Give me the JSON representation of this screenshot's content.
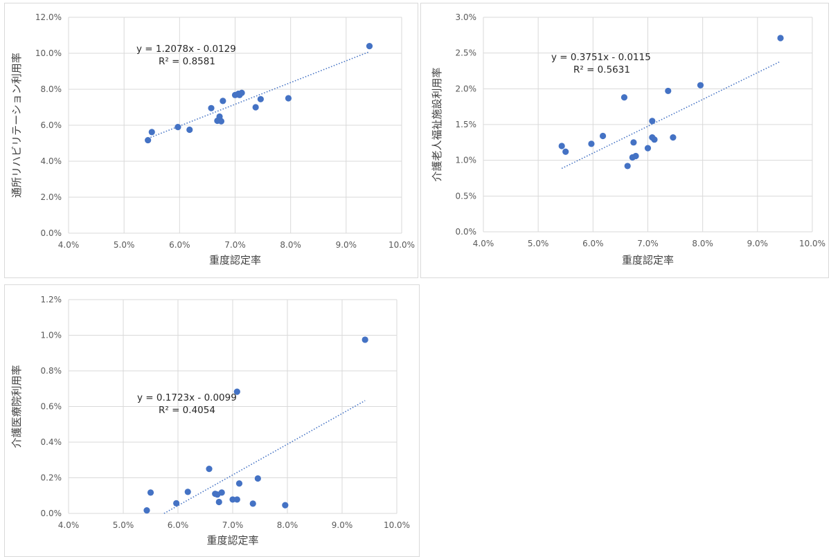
{
  "colors": {
    "point": "#4472C4",
    "trendline": "#4472C4",
    "grid": "#d9d9d9",
    "tick_text": "#595959"
  },
  "chart_data": [
    {
      "type": "scatter",
      "xlabel": "重度認定率",
      "ylabel": "通所リハビリテーション利用率",
      "xlim": [
        0.04,
        0.1
      ],
      "ylim": [
        0,
        0.12
      ],
      "x_ticks": [
        "4.0%",
        "5.0%",
        "6.0%",
        "7.0%",
        "8.0%",
        "9.0%",
        "10.0%"
      ],
      "y_ticks": [
        "0.0%",
        "2.0%",
        "4.0%",
        "6.0%",
        "8.0%",
        "10.0%",
        "12.0%"
      ],
      "grid": true,
      "trendline": {
        "type": "linear",
        "slope": 1.2078,
        "intercept": -0.0129,
        "equation": "y = 1.2078x - 0.0129",
        "r2": "R² = 0.8581"
      },
      "points": [
        [
          0.0543,
          0.0517
        ],
        [
          0.055,
          0.0562
        ],
        [
          0.0597,
          0.059
        ],
        [
          0.0618,
          0.0575
        ],
        [
          0.0657,
          0.0695
        ],
        [
          0.0668,
          0.0625
        ],
        [
          0.0672,
          0.0648
        ],
        [
          0.0675,
          0.0622
        ],
        [
          0.0678,
          0.0735
        ],
        [
          0.07,
          0.0768
        ],
        [
          0.0706,
          0.0775
        ],
        [
          0.0708,
          0.0768
        ],
        [
          0.0712,
          0.078
        ],
        [
          0.0737,
          0.07
        ],
        [
          0.0746,
          0.0745
        ],
        [
          0.0796,
          0.075
        ],
        [
          0.0942,
          0.104
        ]
      ]
    },
    {
      "type": "scatter",
      "xlabel": "重度認定率",
      "ylabel": "介護老人福祉施設利用率",
      "xlim": [
        0.04,
        0.1
      ],
      "ylim": [
        0,
        0.03
      ],
      "x_ticks": [
        "4.0%",
        "5.0%",
        "6.0%",
        "7.0%",
        "8.0%",
        "9.0%",
        "10.0%"
      ],
      "y_ticks": [
        "0.0%",
        "0.5%",
        "1.0%",
        "1.5%",
        "2.0%",
        "2.5%",
        "3.0%"
      ],
      "grid": true,
      "trendline": {
        "type": "linear",
        "slope": 0.3751,
        "intercept": -0.0115,
        "equation": "y = 0.3751x - 0.0115",
        "r2": "R² = 0.5631"
      },
      "points": [
        [
          0.0543,
          0.012
        ],
        [
          0.055,
          0.0112
        ],
        [
          0.0597,
          0.0123
        ],
        [
          0.0618,
          0.0134
        ],
        [
          0.0657,
          0.0188
        ],
        [
          0.0663,
          0.0092
        ],
        [
          0.0672,
          0.0104
        ],
        [
          0.0674,
          0.0125
        ],
        [
          0.0678,
          0.0106
        ],
        [
          0.07,
          0.0117
        ],
        [
          0.0708,
          0.0155
        ],
        [
          0.0708,
          0.0132
        ],
        [
          0.0712,
          0.0129
        ],
        [
          0.0737,
          0.0197
        ],
        [
          0.0746,
          0.0132
        ],
        [
          0.0796,
          0.0205
        ],
        [
          0.0942,
          0.0271
        ]
      ]
    },
    {
      "type": "scatter",
      "xlabel": "重度認定率",
      "ylabel": "介護医療院利用率",
      "xlim": [
        0.04,
        0.1
      ],
      "ylim": [
        0,
        0.012
      ],
      "x_ticks": [
        "4.0%",
        "5.0%",
        "6.0%",
        "7.0%",
        "8.0%",
        "9.0%",
        "10.0%"
      ],
      "y_ticks": [
        "0.0%",
        "0.2%",
        "0.4%",
        "0.6%",
        "0.8%",
        "1.0%",
        "1.2%"
      ],
      "grid": true,
      "trendline": {
        "type": "linear",
        "slope": 0.1723,
        "intercept": -0.0099,
        "equation": "y = 0.1723x - 0.0099",
        "r2": "R² = 0.4054"
      },
      "points": [
        [
          0.0543,
          0.00017
        ],
        [
          0.055,
          0.00117
        ],
        [
          0.0597,
          0.00057
        ],
        [
          0.0618,
          0.00121
        ],
        [
          0.0657,
          0.0025
        ],
        [
          0.0668,
          0.0011
        ],
        [
          0.0672,
          0.00106
        ],
        [
          0.0675,
          0.00064
        ],
        [
          0.068,
          0.00117
        ],
        [
          0.07,
          0.00078
        ],
        [
          0.0708,
          0.00683
        ],
        [
          0.0708,
          0.00078
        ],
        [
          0.0712,
          0.00168
        ],
        [
          0.0737,
          0.00055
        ],
        [
          0.0746,
          0.00196
        ],
        [
          0.0796,
          0.00046
        ],
        [
          0.0942,
          0.00975
        ]
      ]
    }
  ]
}
